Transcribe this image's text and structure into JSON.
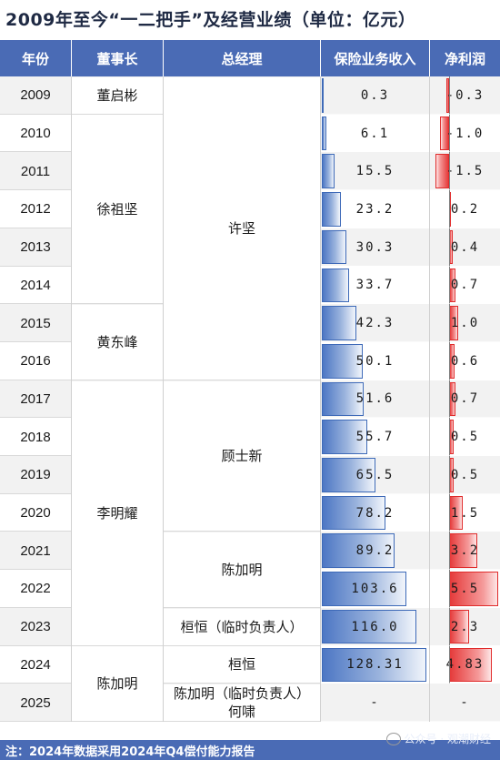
{
  "title": "2009年至今“一二把手”及经营业绩（单位：亿元）",
  "headers": {
    "year": "年份",
    "chairman": "董事长",
    "gm": "总经理",
    "revenue": "保险业务收入",
    "profit": "净利润"
  },
  "chairmen": [
    {
      "name": "董启彬",
      "from": 0,
      "to": 0
    },
    {
      "name": "徐祖坚",
      "from": 1,
      "to": 5
    },
    {
      "name": "黄东峰",
      "from": 6,
      "to": 7
    },
    {
      "name": "李明耀",
      "from": 8,
      "to": 14
    },
    {
      "name": "陈加明",
      "from": 15,
      "to": 16
    }
  ],
  "gms": [
    {
      "name": "许坚",
      "from": 0,
      "to": 7
    },
    {
      "name": "顾士新",
      "from": 8,
      "to": 11
    },
    {
      "name": "陈加明",
      "from": 12,
      "to": 13
    },
    {
      "name": "桓恒（临时负责人）",
      "from": 14,
      "to": 14
    },
    {
      "name": "桓恒",
      "from": 15,
      "to": 15
    },
    {
      "name": "陈加明（临时负责人）\n何啸",
      "from": 16,
      "to": 16
    }
  ],
  "footer": "注：2024年数据采用2024年Q4偿付能力报告",
  "watermark": "公众号 · 观潮财经",
  "chart_data": {
    "type": "table",
    "years": [
      "2009",
      "2010",
      "2011",
      "2012",
      "2013",
      "2014",
      "2015",
      "2016",
      "2017",
      "2018",
      "2019",
      "2020",
      "2021",
      "2022",
      "2023",
      "2024",
      "2025"
    ],
    "series": [
      {
        "name": "保险业务收入",
        "labels": [
          "0.3",
          "6.1",
          "15.5",
          "23.2",
          "30.3",
          "33.7",
          "42.3",
          "50.1",
          "51.6",
          "55.7",
          "65.5",
          "78.2",
          "89.2",
          "103.6",
          "116.0",
          "128.31",
          "-"
        ],
        "values": [
          0.3,
          6.1,
          15.5,
          23.2,
          30.3,
          33.7,
          42.3,
          50.1,
          51.6,
          55.7,
          65.5,
          78.2,
          89.2,
          103.6,
          116.0,
          128.31,
          null
        ],
        "color": "#4d77c4"
      },
      {
        "name": "净利润",
        "labels": [
          "-0.3",
          "-1.0",
          "-1.5",
          "0.2",
          "0.4",
          "0.7",
          "1.0",
          "0.6",
          "0.7",
          "0.5",
          "0.5",
          "1.5",
          "3.2",
          "5.5",
          "2.3",
          "4.83",
          "-"
        ],
        "values": [
          -0.3,
          -1.0,
          -1.5,
          0.2,
          0.4,
          0.7,
          1.0,
          0.6,
          0.7,
          0.5,
          0.5,
          1.5,
          3.2,
          5.5,
          2.3,
          4.83,
          null
        ],
        "color": "#e53a3a"
      }
    ]
  }
}
